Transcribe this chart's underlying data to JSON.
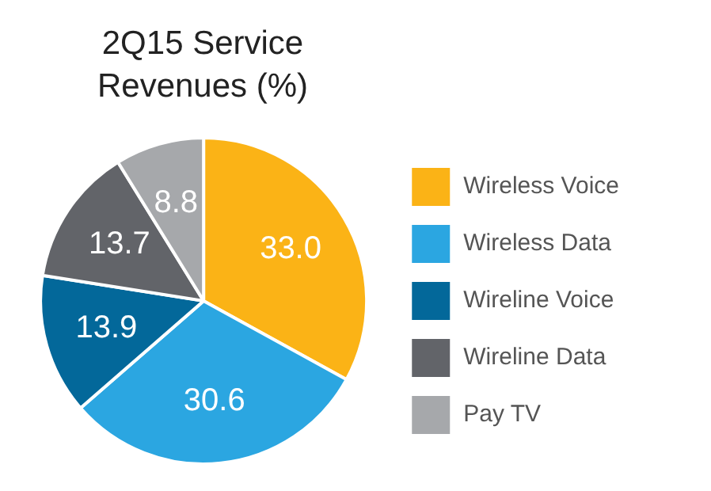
{
  "chart_data": {
    "type": "pie",
    "title": "2Q15 Service Revenues (%)",
    "categories": [
      "Wireless Voice",
      "Wireless Data",
      "Wireline Voice",
      "Wireline Data",
      "Pay TV"
    ],
    "values": [
      33.0,
      30.6,
      13.9,
      13.7,
      8.8
    ],
    "colors": [
      "#fbb316",
      "#2ba6e1",
      "#03689a",
      "#626469",
      "#a6a8ab"
    ],
    "value_labels": [
      "33.0",
      "30.6",
      "13.9",
      "13.7",
      "8.8"
    ],
    "legend": "right"
  }
}
